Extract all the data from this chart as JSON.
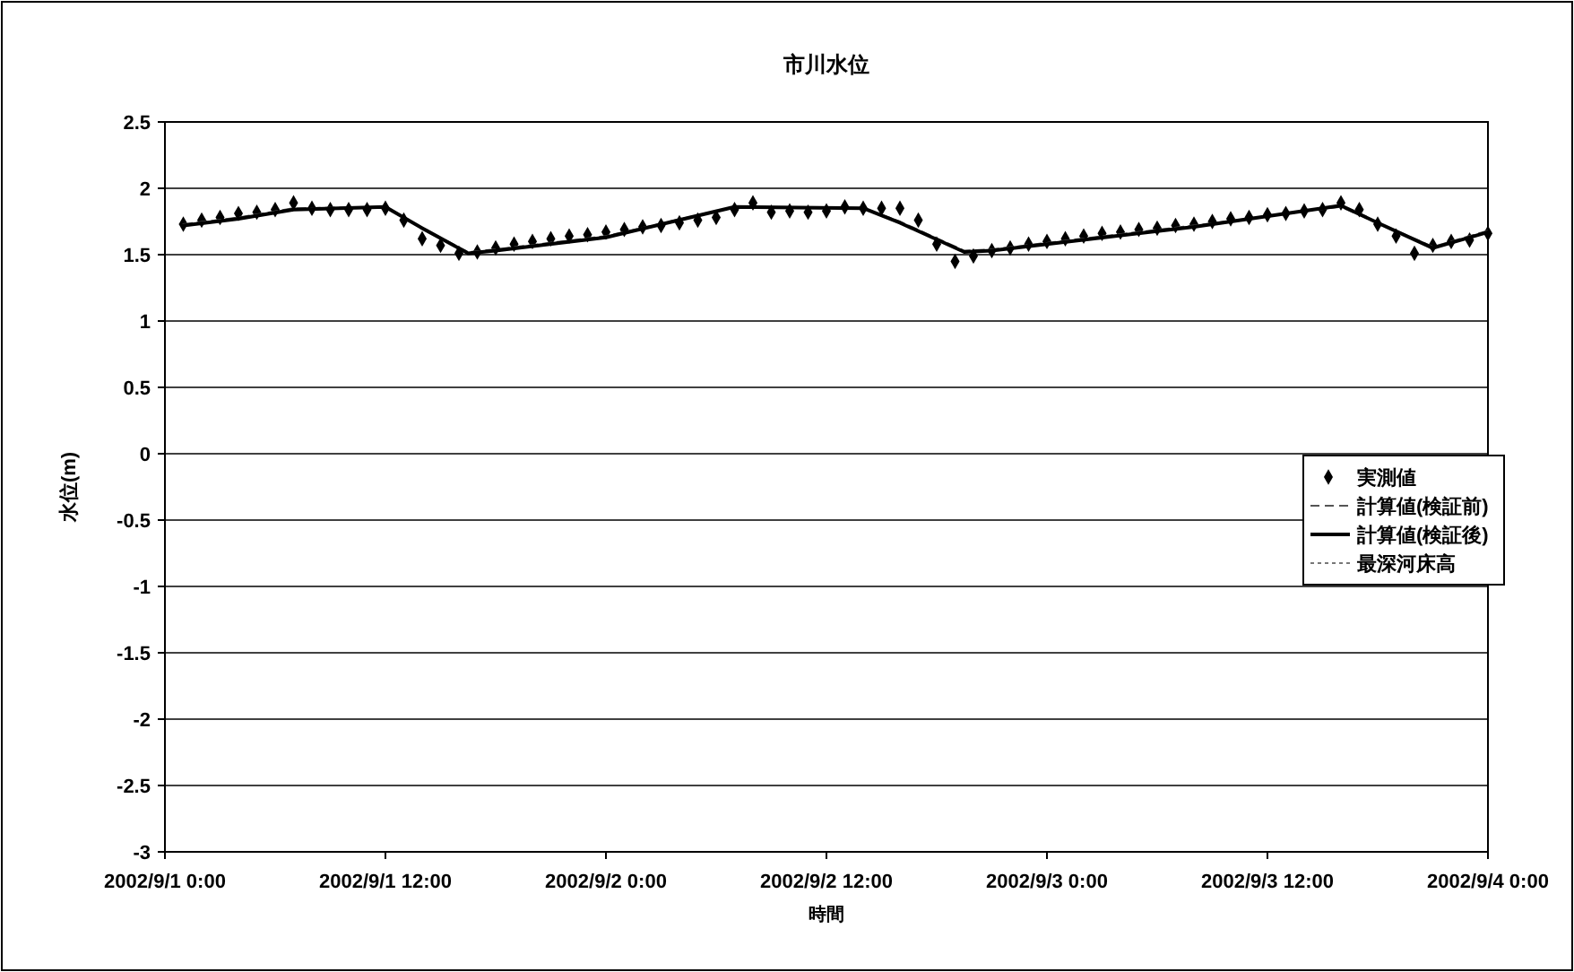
{
  "chart_data": {
    "type": "line",
    "title": "市川水位",
    "xlabel": "時間",
    "ylabel": "水位(m)",
    "xlim": [
      "2002-09-01T00:00",
      "2002-09-04T00:00"
    ],
    "xticks": [
      {
        "value": "2002-09-01T00:00",
        "label": "2002/9/1 0:00"
      },
      {
        "value": "2002-09-01T12:00",
        "label": "2002/9/1 12:00"
      },
      {
        "value": "2002-09-02T00:00",
        "label": "2002/9/2 0:00"
      },
      {
        "value": "2002-09-02T12:00",
        "label": "2002/9/2 12:00"
      },
      {
        "value": "2002-09-03T00:00",
        "label": "2002/9/3 0:00"
      },
      {
        "value": "2002-09-03T12:00",
        "label": "2002/9/3 12:00"
      },
      {
        "value": "2002-09-04T00:00",
        "label": "2002/9/4 0:00"
      }
    ],
    "ylim": [
      -3,
      2.5
    ],
    "yticks": [
      -3,
      -2.5,
      -2,
      -1.5,
      -1,
      -0.5,
      0,
      0.5,
      1,
      1.5,
      2,
      2.5
    ],
    "grid": "y",
    "legend": "right",
    "series": [
      {
        "name": "実測値",
        "type": "scatter",
        "marker": "diamond",
        "color": "#000000",
        "x": [
          "2002-09-01T01:00",
          "2002-09-01T02:00",
          "2002-09-01T03:00",
          "2002-09-01T04:00",
          "2002-09-01T05:00",
          "2002-09-01T06:00",
          "2002-09-01T07:00",
          "2002-09-01T08:00",
          "2002-09-01T09:00",
          "2002-09-01T10:00",
          "2002-09-01T11:00",
          "2002-09-01T12:00",
          "2002-09-01T13:00",
          "2002-09-01T14:00",
          "2002-09-01T15:00",
          "2002-09-01T16:00",
          "2002-09-01T17:00",
          "2002-09-01T18:00",
          "2002-09-01T19:00",
          "2002-09-01T20:00",
          "2002-09-01T21:00",
          "2002-09-01T22:00",
          "2002-09-01T23:00",
          "2002-09-02T00:00",
          "2002-09-02T01:00",
          "2002-09-02T02:00",
          "2002-09-02T03:00",
          "2002-09-02T04:00",
          "2002-09-02T05:00",
          "2002-09-02T06:00",
          "2002-09-02T07:00",
          "2002-09-02T08:00",
          "2002-09-02T09:00",
          "2002-09-02T10:00",
          "2002-09-02T11:00",
          "2002-09-02T12:00",
          "2002-09-02T13:00",
          "2002-09-02T14:00",
          "2002-09-02T15:00",
          "2002-09-02T16:00",
          "2002-09-02T17:00",
          "2002-09-02T18:00",
          "2002-09-02T19:00",
          "2002-09-02T20:00",
          "2002-09-02T21:00",
          "2002-09-02T22:00",
          "2002-09-02T23:00",
          "2002-09-03T00:00",
          "2002-09-03T01:00",
          "2002-09-03T02:00",
          "2002-09-03T03:00",
          "2002-09-03T04:00",
          "2002-09-03T05:00",
          "2002-09-03T06:00",
          "2002-09-03T07:00",
          "2002-09-03T08:00",
          "2002-09-03T09:00",
          "2002-09-03T10:00",
          "2002-09-03T11:00",
          "2002-09-03T12:00",
          "2002-09-03T13:00",
          "2002-09-03T14:00",
          "2002-09-03T15:00",
          "2002-09-03T16:00",
          "2002-09-03T17:00",
          "2002-09-03T18:00",
          "2002-09-03T19:00",
          "2002-09-03T20:00",
          "2002-09-03T21:00",
          "2002-09-03T22:00",
          "2002-09-03T23:00",
          "2002-09-04T00:00"
        ],
        "values": [
          1.73,
          1.76,
          1.78,
          1.81,
          1.82,
          1.84,
          1.89,
          1.85,
          1.84,
          1.84,
          1.84,
          1.85,
          1.76,
          1.62,
          1.57,
          1.51,
          1.52,
          1.55,
          1.58,
          1.6,
          1.62,
          1.64,
          1.65,
          1.67,
          1.69,
          1.71,
          1.72,
          1.74,
          1.76,
          1.78,
          1.84,
          1.89,
          1.82,
          1.83,
          1.82,
          1.83,
          1.86,
          1.85,
          1.85,
          1.85,
          1.76,
          1.58,
          1.45,
          1.49,
          1.53,
          1.55,
          1.58,
          1.6,
          1.62,
          1.64,
          1.66,
          1.67,
          1.69,
          1.7,
          1.72,
          1.73,
          1.75,
          1.77,
          1.78,
          1.8,
          1.81,
          1.83,
          1.84,
          1.89,
          1.84,
          1.73,
          1.64,
          1.51,
          1.57,
          1.6,
          1.61,
          1.66
        ]
      },
      {
        "name": "計算値(検証前)",
        "line_style": "dashed",
        "color": "#555555",
        "x": [
          "2002-09-01T01:00",
          "2002-09-01T04:00",
          "2002-09-01T07:00",
          "2002-09-01T12:00",
          "2002-09-01T14:00",
          "2002-09-01T16:30",
          "2002-09-01T18:00",
          "2002-09-02T00:00",
          "2002-09-02T07:00",
          "2002-09-02T14:00",
          "2002-09-02T16:00",
          "2002-09-02T19:30",
          "2002-09-02T21:00",
          "2002-09-03T08:00",
          "2002-09-03T16:00",
          "2002-09-03T18:00",
          "2002-09-03T21:00",
          "2002-09-04T00:00"
        ],
        "values": [
          1.73,
          1.78,
          1.85,
          1.86,
          1.7,
          1.52,
          1.54,
          1.64,
          1.86,
          1.85,
          1.75,
          1.53,
          1.54,
          1.72,
          1.86,
          1.74,
          1.56,
          1.68
        ]
      },
      {
        "name": "計算値(検証後)",
        "line_style": "solid",
        "color": "#000000",
        "x": [
          "2002-09-01T01:00",
          "2002-09-01T04:00",
          "2002-09-01T07:00",
          "2002-09-01T12:00",
          "2002-09-01T14:00",
          "2002-09-01T16:30",
          "2002-09-01T18:00",
          "2002-09-02T00:00",
          "2002-09-02T07:00",
          "2002-09-02T14:00",
          "2002-09-02T16:00",
          "2002-09-02T19:30",
          "2002-09-02T21:00",
          "2002-09-03T08:00",
          "2002-09-03T16:00",
          "2002-09-03T18:00",
          "2002-09-03T21:00",
          "2002-09-04T00:00"
        ],
        "values": [
          1.72,
          1.77,
          1.84,
          1.86,
          1.7,
          1.51,
          1.53,
          1.63,
          1.86,
          1.85,
          1.74,
          1.52,
          1.53,
          1.71,
          1.87,
          1.74,
          1.55,
          1.67
        ]
      },
      {
        "name": "最深河床高",
        "line_style": "dotted",
        "color": "#777777"
      }
    ]
  }
}
